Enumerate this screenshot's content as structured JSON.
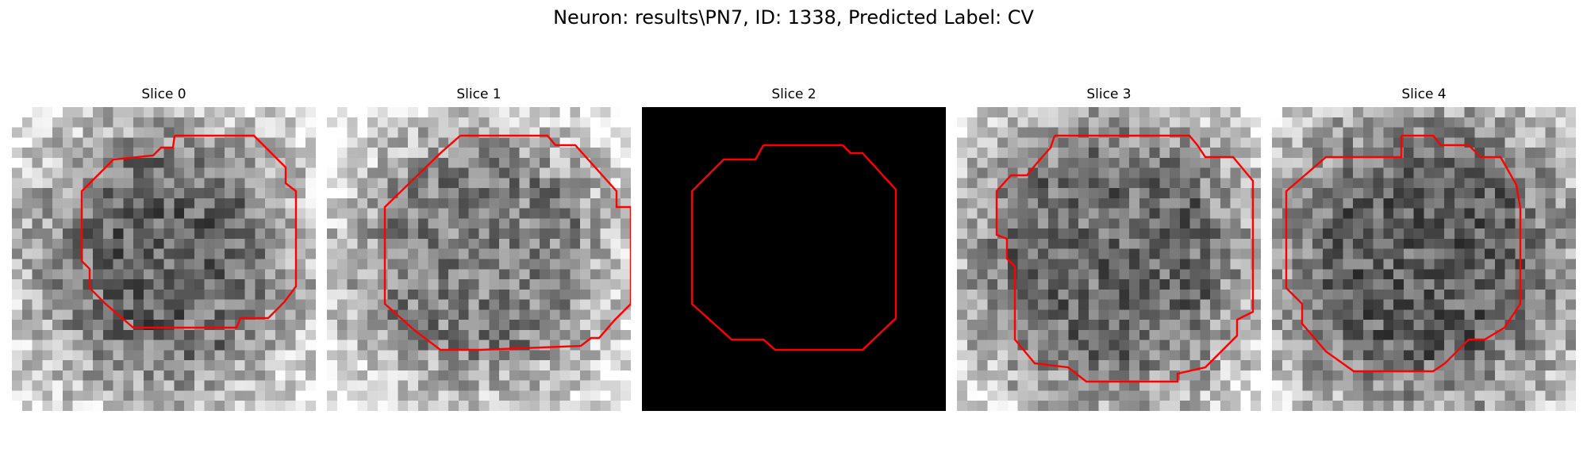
{
  "figure": {
    "title": "Neuron: results\\PN7, ID: 1338, Predicted Label: CV"
  },
  "panels": [
    {
      "title": "Slice 0",
      "image": "grayscale-noise",
      "mean_intensity": 0.55,
      "dark_center": true
    },
    {
      "title": "Slice 1",
      "image": "grayscale-noise",
      "mean_intensity": 0.6,
      "dark_center": false
    },
    {
      "title": "Slice 2",
      "image": "black",
      "mean_intensity": 0.0,
      "dark_center": false
    },
    {
      "title": "Slice 3",
      "image": "grayscale-noise",
      "mean_intensity": 0.5,
      "dark_center": false
    },
    {
      "title": "Slice 4",
      "image": "grayscale-noise",
      "mean_intensity": 0.45,
      "dark_center": false
    }
  ],
  "contour_color": "#ff0000"
}
